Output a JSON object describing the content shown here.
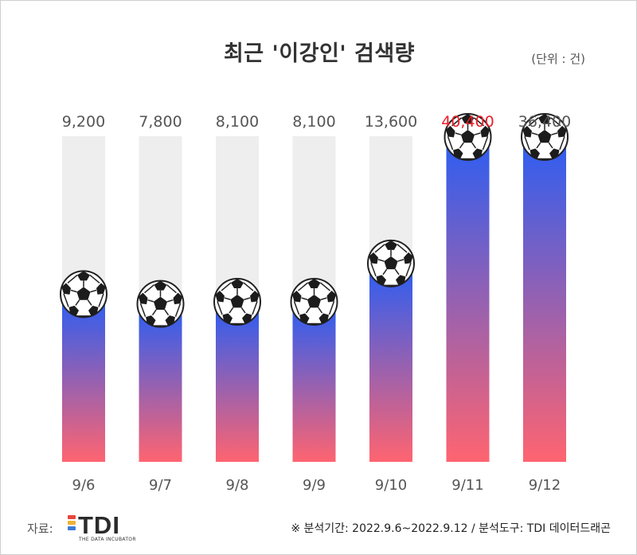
{
  "chart_data": {
    "type": "bar",
    "title": "최근 '이강인' 검색량",
    "unit_label": "(단위 : 건)",
    "categories": [
      "9/6",
      "9/7",
      "9/8",
      "9/9",
      "9/10",
      "9/11",
      "9/12"
    ],
    "values": [
      9200,
      7800,
      8100,
      8100,
      13600,
      40400,
      36400
    ],
    "value_labels": [
      "9,200",
      "7,800",
      "8,100",
      "8,100",
      "13,600",
      "40,400",
      "36,400"
    ],
    "highlight_index": 5,
    "colors": {
      "bar_top": "#2f5ef0",
      "bar_bottom": "#ff6470",
      "track": "#eeeeee",
      "label": "#555555",
      "highlight_label": "#e8202a"
    },
    "marker_icon": "soccer-ball-icon"
  },
  "footer": {
    "source_label": "자료:",
    "logo_text": "TDI",
    "logo_subtext": "THE DATA INCUBATOR",
    "logo_colors": [
      "#e8453c",
      "#f2b134",
      "#3b7bd8"
    ],
    "note": "※ 분석기간:  2022.9.6~2022.9.12  / 분석도구: TDI 데이터드래곤"
  }
}
